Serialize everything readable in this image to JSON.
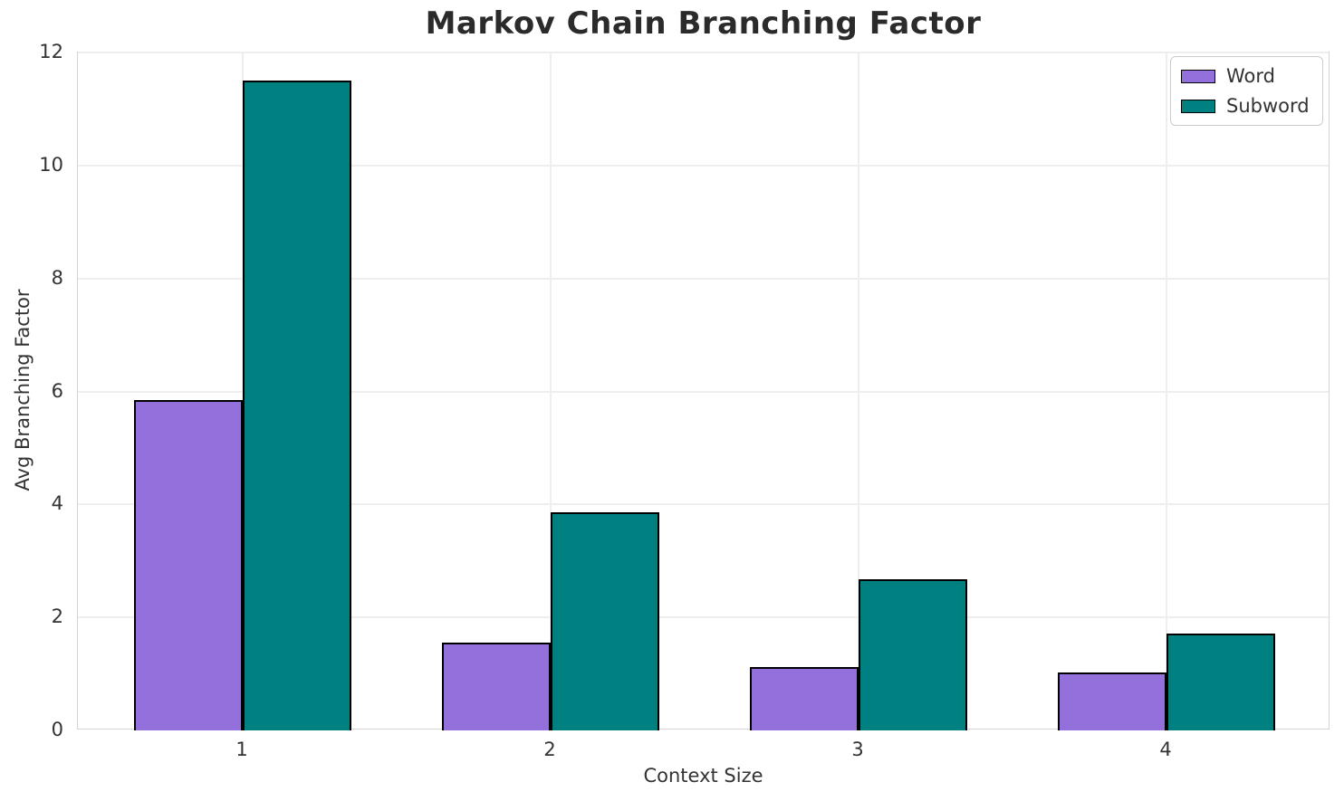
{
  "chart_data": {
    "type": "bar",
    "title": "Markov Chain Branching Factor",
    "xlabel": "Context Size",
    "ylabel": "Avg Branching Factor",
    "categories": [
      "1",
      "2",
      "3",
      "4"
    ],
    "series": [
      {
        "name": "Word",
        "color": "#9370DB",
        "values": [
          5.84,
          1.56,
          1.12,
          1.02
        ]
      },
      {
        "name": "Subword",
        "color": "#008080",
        "values": [
          11.5,
          3.86,
          2.67,
          1.72
        ]
      }
    ],
    "ylim": [
      0,
      12
    ],
    "yticks": [
      0,
      2,
      4,
      6,
      8,
      10,
      12
    ],
    "grid": "on",
    "legend_position": "upper-right",
    "bar_edge_color": "#000000",
    "background_color": "#ffffff",
    "grid_color": "#eeeeee",
    "spine_color": "#d4d4d4",
    "title_color": "#2b2b2b",
    "text_color": "#333333"
  }
}
